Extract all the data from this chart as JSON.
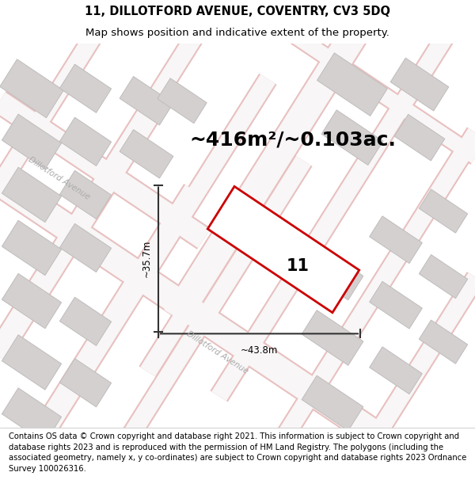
{
  "title_line1": "11, DILLOTFORD AVENUE, COVENTRY, CV3 5DQ",
  "title_line2": "Map shows position and indicative extent of the property.",
  "area_text": "~416m²/~0.103ac.",
  "property_number": "11",
  "dim_width": "~43.8m",
  "dim_height": "~35.7m",
  "street_label_upper": "Dillotford Avenue",
  "street_label_lower": "Dillotford Avenue",
  "footer_text": "Contains OS data © Crown copyright and database right 2021. This information is subject to Crown copyright and database rights 2023 and is reproduced with the permission of HM Land Registry. The polygons (including the associated geometry, namely x, y co-ordinates) are subject to Crown copyright and database rights 2023 Ordnance Survey 100026316.",
  "map_bg": "#eeecec",
  "building_fill": "#d4d0d0",
  "building_edge": "#c0bcbc",
  "road_fill": "#f8f6f6",
  "road_edge": "#e8c0c0",
  "property_fill": "#ffffff",
  "property_edge": "#cc0000",
  "dim_color": "#333333",
  "street_color": "#aaaaaa",
  "title_fontsize": 10.5,
  "subtitle_fontsize": 9.5,
  "area_fontsize": 18,
  "label_fontsize": 8.5,
  "street_fontsize": 7.5,
  "footer_fontsize": 7.2,
  "number_fontsize": 15
}
